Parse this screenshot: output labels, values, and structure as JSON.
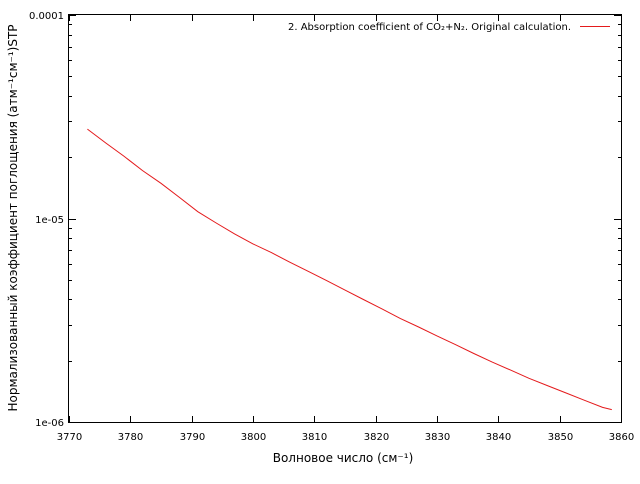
{
  "chart_data": {
    "type": "line",
    "title": "",
    "xlabel": "Волновое число (см⁻¹)",
    "ylabel": "Нормализованный коэффициент поглощения (атм⁻¹см⁻¹)STP",
    "xlim": [
      3770,
      3860
    ],
    "ylim": [
      1e-06,
      0.0001
    ],
    "yscale": "log",
    "grid": false,
    "legend_position": "top-right",
    "x_ticks": [
      3770,
      3780,
      3790,
      3800,
      3810,
      3820,
      3830,
      3840,
      3850,
      3860
    ],
    "y_ticks": [
      {
        "value": 0.0001,
        "label": "0.0001"
      },
      {
        "value": 1e-05,
        "label": "1e-05"
      },
      {
        "value": 1e-06,
        "label": "1e-06"
      }
    ],
    "series": [
      {
        "name": "2. Absorption coefficient of CO₂+N₂. Original calculation.",
        "color": "#e41a1c",
        "x": [
          3773,
          3776,
          3779,
          3782,
          3785,
          3788,
          3791,
          3794,
          3797,
          3800,
          3803,
          3806,
          3809,
          3812,
          3815,
          3818,
          3821,
          3824,
          3827,
          3830,
          3833,
          3836,
          3839,
          3842,
          3845,
          3848,
          3851,
          3854,
          3857,
          3858.5
        ],
        "y": [
          2.75e-05,
          2.35e-05,
          2.02e-05,
          1.72e-05,
          1.49e-05,
          1.27e-05,
          1.08e-05,
          9.5e-06,
          8.4e-06,
          7.5e-06,
          6.8e-06,
          6.1e-06,
          5.5e-06,
          4.95e-06,
          4.45e-06,
          4e-06,
          3.6e-06,
          3.23e-06,
          2.93e-06,
          2.65e-06,
          2.4e-06,
          2.17e-06,
          1.97e-06,
          1.8e-06,
          1.64e-06,
          1.51e-06,
          1.39e-06,
          1.28e-06,
          1.18e-06,
          1.15e-06
        ]
      }
    ]
  }
}
